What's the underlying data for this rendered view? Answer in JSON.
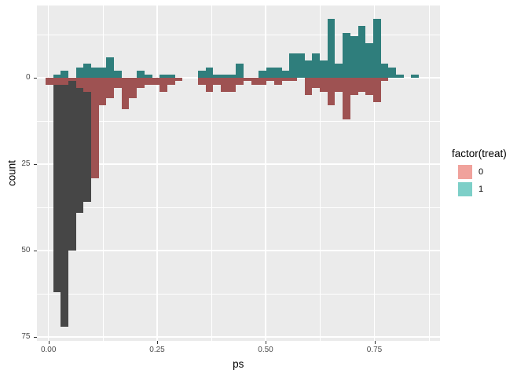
{
  "chart_data": {
    "type": "bar",
    "subtype": "mirrored-histogram",
    "title": "",
    "xlabel": "ps",
    "ylabel": "count",
    "x_tick_values": [
      0.0,
      0.25,
      0.5,
      0.75
    ],
    "x_tick_labels": [
      "0.00",
      "0.25",
      "0.50",
      "0.75"
    ],
    "y_tick_values": [
      0,
      25,
      50,
      75
    ],
    "y_tick_labels": [
      "0",
      "25",
      "50",
      "75"
    ],
    "y_axis_note": "counts increase downward below the zero line; upper bars are drawn above the zero line",
    "xlim": [
      -0.02,
      0.9
    ],
    "count_max_up": 17,
    "count_max_down": 72,
    "bin_width_ps": 0.0175,
    "first_bin_left_ps": -0.008,
    "grid": "on",
    "panel_background": "#EBEBEB",
    "gridline_color": "#FFFFFF",
    "legend_position": "right",
    "series": [
      {
        "name": "treat-1-upward-histogram",
        "color": "#2F7E7C",
        "direction": "up",
        "counts": [
          0,
          1,
          2,
          0,
          3,
          4,
          3,
          3,
          6,
          2,
          0,
          0,
          2,
          1,
          0,
          1,
          1,
          0,
          0,
          0,
          2,
          3,
          1,
          1,
          1,
          4,
          0,
          0,
          2,
          3,
          3,
          2,
          7,
          7,
          5,
          7,
          5,
          17,
          4,
          13,
          12,
          15,
          10,
          17,
          4,
          3,
          1,
          0,
          1,
          0,
          0,
          0
        ]
      },
      {
        "name": "treat-0-downward-histogram",
        "color": "#9E5252",
        "direction": "down",
        "counts": [
          2,
          2,
          2,
          1,
          3,
          4,
          29,
          8,
          6,
          3,
          9,
          6,
          3,
          2,
          2,
          4,
          2,
          1,
          0,
          0,
          2,
          4,
          2,
          4,
          4,
          2,
          1,
          2,
          2,
          1,
          2,
          1,
          1,
          0,
          5,
          3,
          4,
          8,
          4,
          12,
          5,
          4,
          5,
          7,
          1,
          0,
          0,
          0,
          0,
          0,
          0,
          0
        ]
      },
      {
        "name": "dark-downward-histogram-behind",
        "color": "#464646",
        "direction": "down",
        "counts": [
          0,
          62,
          72,
          50,
          39,
          36,
          0,
          0,
          0,
          0,
          0,
          0,
          0,
          0,
          0,
          0,
          0,
          0,
          0,
          0,
          0,
          0,
          0,
          0,
          0,
          0,
          0,
          0,
          0,
          0,
          0,
          0,
          0,
          0,
          0,
          0,
          0,
          0,
          0,
          0,
          0,
          0,
          0,
          0,
          0,
          0,
          0,
          0,
          0,
          0,
          0,
          0
        ]
      }
    ],
    "legend": {
      "title": "factor(treat)",
      "entries": [
        {
          "label": "0",
          "color": "#F0A29C"
        },
        {
          "label": "1",
          "color": "#7DCFC8"
        }
      ]
    }
  }
}
